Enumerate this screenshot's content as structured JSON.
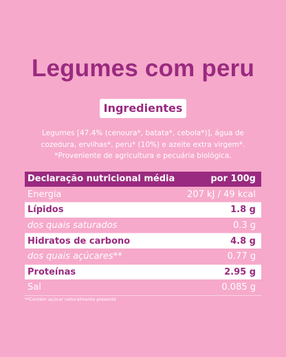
{
  "title": "Legumes com peru",
  "section_label": "Ingredientes",
  "ingredients": "Legumes [47.4% (cenoura*, batata*, cebola*)], água de cozedura, ervilhas*, peru* (10%) e azeite extra virgem*. *Proveniente de agricultura e pecuária biológica.",
  "table": {
    "header": [
      "Declaração nutricional média",
      "por 100g"
    ],
    "rows": [
      [
        "Energia",
        "207 kJ / 49 kcal"
      ],
      [
        "Lípidos",
        "1.8 g"
      ],
      [
        "dos quais saturados",
        "0.3 g"
      ],
      [
        "Hidratos de carbono",
        "4.8 g"
      ],
      [
        "dos quais açúcares**",
        "0.77 g"
      ],
      [
        "Proteínas",
        "2.95 g"
      ],
      [
        "Sal",
        "0.085 g"
      ]
    ]
  },
  "footnote": "**Contém açúcar naturalmente presente"
}
